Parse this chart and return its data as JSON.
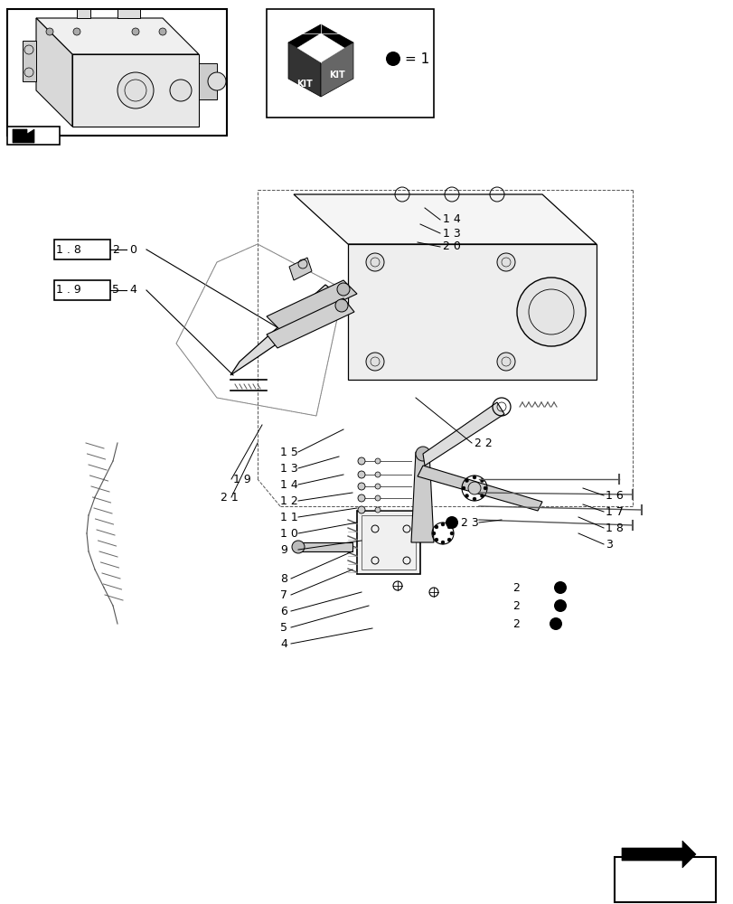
{
  "bg_color": "#ffffff",
  "fig_width": 8.12,
  "fig_height": 10.0,
  "dpi": 100,
  "ref_box1_text": "1 . 8",
  "ref_box1_num": "2",
  "ref_box1_num2": "0",
  "ref_box2_text": "1 . 9",
  "ref_box2_num": "5",
  "ref_box2_num2": "4",
  "kit_equals": "= 1"
}
